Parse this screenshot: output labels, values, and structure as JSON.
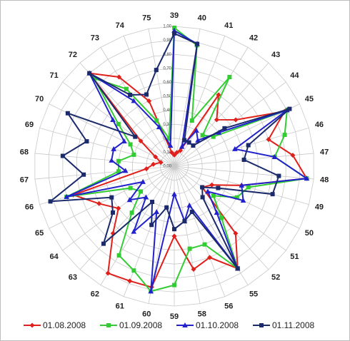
{
  "chart_data": {
    "type": "radar",
    "categories": [
      "39",
      "40",
      "41",
      "42",
      "43",
      "44",
      "45",
      "46",
      "47",
      "48",
      "49",
      "50",
      "51",
      "52",
      "55",
      "56",
      "58",
      "59",
      "60",
      "61",
      "62",
      "63",
      "64",
      "65",
      "66",
      "67",
      "68",
      "69",
      "70",
      "71",
      "72",
      "73",
      "74",
      "75"
    ],
    "rlim": [
      0,
      1
    ],
    "rticks": [
      {
        "value": 0,
        "label": "0,00"
      },
      {
        "value": 0.1,
        "label": "0,10"
      },
      {
        "value": 0.2,
        "label": "0,20"
      },
      {
        "value": 0.3,
        "label": "0,30"
      },
      {
        "value": 0.4,
        "label": "0,40"
      },
      {
        "value": 0.5,
        "label": "0,50"
      },
      {
        "value": 0.6,
        "label": "0,60"
      },
      {
        "value": 0.7,
        "label": "0,70"
      },
      {
        "value": 0.8,
        "label": "0,80"
      },
      {
        "value": 0.9,
        "label": "0,90"
      },
      {
        "value": 1,
        "label": "1,00"
      }
    ],
    "grid": true,
    "legend": "bottom",
    "series": [
      {
        "name": "01.08.2008",
        "color": "#e0201b",
        "marker": "diamond",
        "values": [
          0.08,
          0.1,
          0.12,
          0.6,
          0.45,
          0.55,
          0.88,
          0.7,
          0.85,
          0.95,
          0.5,
          0.3,
          0.25,
          0.65,
          0.86,
          0.7,
          0.75,
          0.5,
          0.88,
          0.88,
          0.9,
          0.65,
          0.5,
          0.6,
          0.75,
          0.2,
          0.15,
          0.1,
          0.15,
          0.3,
          0.9,
          0.75,
          0.5,
          0.1
        ]
      },
      {
        "name": "01.09.2008",
        "color": "#33cc33",
        "marker": "square",
        "values": [
          0.99,
          0.88,
          0.35,
          0.75,
          0.3,
          0.35,
          0.9,
          0.82,
          0.72,
          0.95,
          0.55,
          0.5,
          0.35,
          0.5,
          0.86,
          0.6,
          0.6,
          0.85,
          0.91,
          0.8,
          0.75,
          0.45,
          0.3,
          0.35,
          0.8,
          0.4,
          0.4,
          0.3,
          0.35,
          0.5,
          0.85,
          0.65,
          0.35,
          0.2
        ]
      },
      {
        "name": "01.10.2008",
        "color": "#2222cc",
        "marker": "triangle",
        "values": [
          0.97,
          0.89,
          0.15,
          0.3,
          0.25,
          0.4,
          0.9,
          0.45,
          0.72,
          0.95,
          0.5,
          0.55,
          0.3,
          0.45,
          0.86,
          0.3,
          0.4,
          0.2,
          0.91,
          0.35,
          0.55,
          0.3,
          0.4,
          0.25,
          0.8,
          0.35,
          0.45,
          0.45,
          0.4,
          0.55,
          0.9,
          0.55,
          0.3,
          0.15
        ]
      },
      {
        "name": "01.11.2008",
        "color": "#1b2a6b",
        "marker": "square",
        "values": [
          0.95,
          0.89,
          0.2,
          0.2,
          0.2,
          0.45,
          0.92,
          0.55,
          0.5,
          0.75,
          0.73,
          0.35,
          0.25,
          0.3,
          0.86,
          0.35,
          0.4,
          0.45,
          0.3,
          0.45,
          0.3,
          0.75,
          0.55,
          0.5,
          0.92,
          0.65,
          0.8,
          0.65,
          0.85,
          0.35,
          0.9,
          0.6,
          0.55,
          0.7
        ]
      }
    ]
  }
}
